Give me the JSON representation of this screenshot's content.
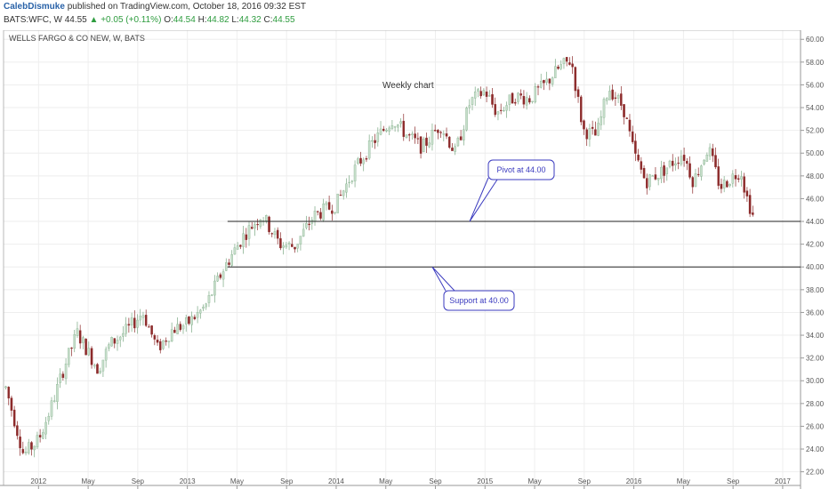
{
  "header": {
    "author": "CalebDismuke",
    "published_text": "published on TradingView.com, October 18, 2016 09:32 EST",
    "symbol": "BATS:WFC, W",
    "last": "44.55",
    "change_arrow": "▲",
    "change": "+0.05 (+0.11%)",
    "o_label": "O:",
    "o_value": "44.54",
    "h_label": "H:",
    "h_value": "44.82",
    "l_label": "L:",
    "l_value": "44.32",
    "c_label": "C:",
    "c_value": "44.55"
  },
  "chart_data": {
    "type": "candlestick",
    "symbol_label": "WELLS FARGO & CO NEW, W, BATS",
    "annotation": "Weekly chart",
    "ylim": [
      20.8,
      60.8
    ],
    "y_ticks": [
      "22.00",
      "24.00",
      "26.00",
      "28.00",
      "30.00",
      "32.00",
      "34.00",
      "36.00",
      "38.00",
      "40.00",
      "42.00",
      "44.00",
      "46.00",
      "48.00",
      "50.00",
      "52.00",
      "54.00",
      "56.00",
      "58.00",
      "60.00"
    ],
    "x_ticks": [
      "2012",
      "May",
      "Sep",
      "2013",
      "May",
      "Sep",
      "2014",
      "May",
      "Sep",
      "2015",
      "May",
      "Sep",
      "2016",
      "May",
      "Sep",
      "2017"
    ],
    "horizontal_lines": [
      {
        "label": "Pivot at 44.00",
        "value": 44.0
      },
      {
        "label": "Support at 40.00",
        "value": 40.0
      }
    ],
    "colors": {
      "up": "#c5ddc9",
      "down": "#8c2a2a",
      "line": "#222222",
      "callout_border": "#3b3bbf"
    },
    "anchors": [
      [
        2011.78,
        29.4
      ],
      [
        2011.9,
        23.5
      ],
      [
        2012.0,
        24.8
      ],
      [
        2012.08,
        27.5
      ],
      [
        2012.18,
        31.5
      ],
      [
        2012.26,
        34.2
      ],
      [
        2012.33,
        32.6
      ],
      [
        2012.4,
        31.0
      ],
      [
        2012.48,
        33.2
      ],
      [
        2012.6,
        34.5
      ],
      [
        2012.7,
        36.0
      ],
      [
        2012.8,
        32.8
      ],
      [
        2012.9,
        34.5
      ],
      [
        2013.0,
        35.0
      ],
      [
        2013.12,
        36.5
      ],
      [
        2013.25,
        40.0
      ],
      [
        2013.38,
        42.8
      ],
      [
        2013.5,
        44.6
      ],
      [
        2013.62,
        42.0
      ],
      [
        2013.72,
        41.8
      ],
      [
        2013.85,
        44.5
      ],
      [
        2014.0,
        45.5
      ],
      [
        2014.12,
        48.5
      ],
      [
        2014.25,
        51.0
      ],
      [
        2014.38,
        53.0
      ],
      [
        2014.48,
        51.5
      ],
      [
        2014.58,
        50.5
      ],
      [
        2014.7,
        52.5
      ],
      [
        2014.8,
        50.0
      ],
      [
        2014.9,
        54.5
      ],
      [
        2015.0,
        55.5
      ],
      [
        2015.08,
        53.5
      ],
      [
        2015.2,
        55.0
      ],
      [
        2015.3,
        54.8
      ],
      [
        2015.4,
        56.0
      ],
      [
        2015.5,
        57.5
      ],
      [
        2015.58,
        58.2
      ],
      [
        2015.62,
        55.0
      ],
      [
        2015.66,
        52.0
      ],
      [
        2015.75,
        51.5
      ],
      [
        2015.83,
        55.8
      ],
      [
        2015.93,
        54.0
      ],
      [
        2016.0,
        50.0
      ],
      [
        2016.08,
        47.5
      ],
      [
        2016.2,
        48.5
      ],
      [
        2016.33,
        50.0
      ],
      [
        2016.4,
        47.5
      ],
      [
        2016.5,
        50.5
      ],
      [
        2016.58,
        47.0
      ],
      [
        2016.65,
        47.8
      ],
      [
        2016.72,
        48.5
      ],
      [
        2016.75,
        46.5
      ],
      [
        2016.8,
        44.5
      ]
    ]
  }
}
